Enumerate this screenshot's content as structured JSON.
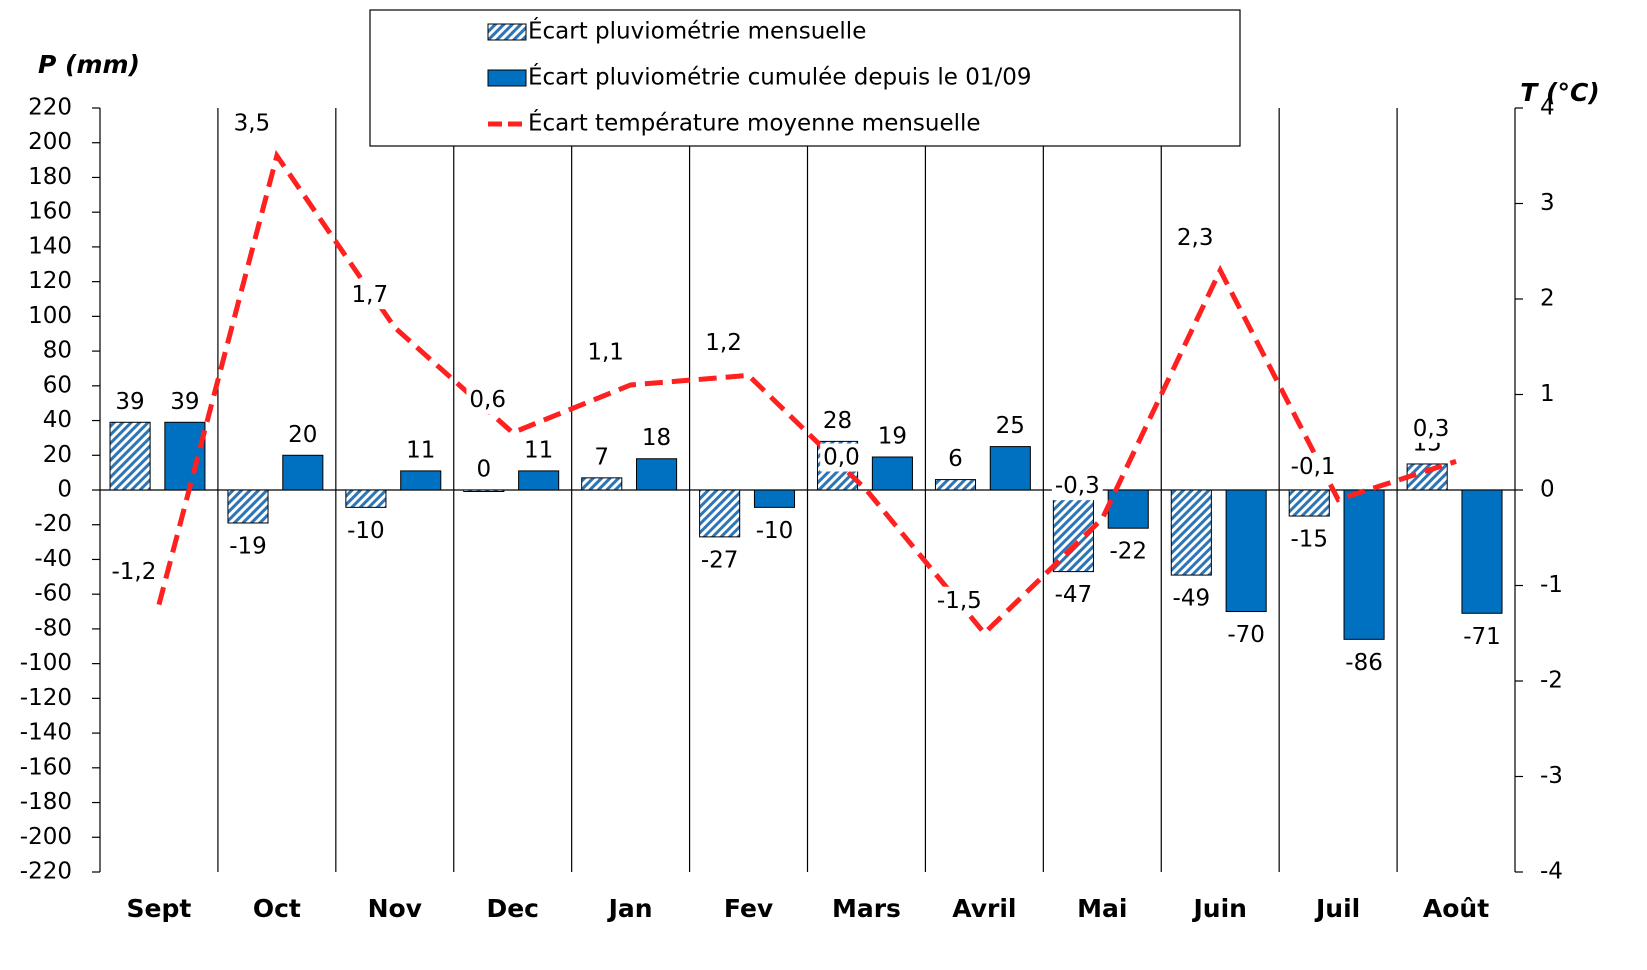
{
  "chart_data": {
    "type": "bar",
    "ylabel": "P (mm)",
    "y2label": "T (°C)",
    "categories": [
      "Sept",
      "Oct",
      "Nov",
      "Dec",
      "Jan",
      "Fev",
      "Mars",
      "Avril",
      "Mai",
      "Juin",
      "Juil",
      "Août"
    ],
    "series": [
      {
        "name": "Écart pluviométrie mensuelle",
        "type": "bar",
        "color": "#9dc3e6",
        "hatch": true,
        "values": [
          39,
          -19,
          -10,
          0,
          7,
          -27,
          28,
          6,
          -47,
          -49,
          -15,
          15
        ]
      },
      {
        "name": "Écart pluviométrie cumulée depuis le 01/09",
        "type": "bar",
        "color": "#0070c0",
        "values": [
          39,
          20,
          11,
          11,
          18,
          -10,
          19,
          25,
          -22,
          -70,
          -86,
          -71
        ]
      },
      {
        "name": "Écart température moyenne mensuelle",
        "type": "line",
        "axis": "y2",
        "color": "#ff2020",
        "dashed": true,
        "values": [
          -1.2,
          3.5,
          1.7,
          0.6,
          1.1,
          1.2,
          0.0,
          -1.5,
          -0.3,
          2.3,
          -0.1,
          0.3
        ],
        "value_labels": [
          "-1,2",
          "3,5",
          "1,7",
          "0,6",
          "1,1",
          "1,2",
          "0,0",
          "-1,5",
          "-0,3",
          "2,3",
          "-0,1",
          "0,3"
        ]
      }
    ],
    "ylim": [
      -220,
      220
    ],
    "yticks": [
      -220,
      -200,
      -180,
      -160,
      -140,
      -120,
      -100,
      -80,
      -60,
      -40,
      -20,
      0,
      20,
      40,
      60,
      80,
      100,
      120,
      140,
      160,
      180,
      200,
      220
    ],
    "y2lim": [
      -4,
      4
    ],
    "y2ticks": [
      -4,
      -3,
      -2,
      -1,
      0,
      1,
      2,
      3,
      4
    ],
    "legend": "top"
  }
}
